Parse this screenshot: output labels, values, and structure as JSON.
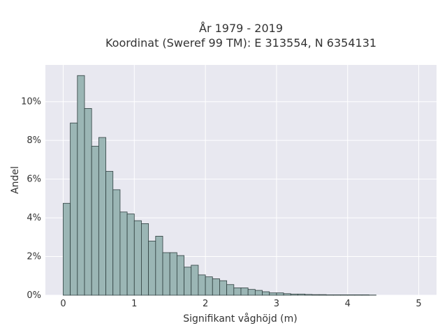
{
  "chart_data": {
    "type": "bar",
    "title_line1": "År 1979 - 2019",
    "title_line2": "Koordinat (Sweref 99 TM): E 313554, N 6354131",
    "xlabel": "Signifikant våghöjd (m)",
    "ylabel": "Andel",
    "xlim": [
      -0.25,
      5.25
    ],
    "ylim": [
      0,
      11.9
    ],
    "x_ticks": [
      0,
      1,
      2,
      3,
      4,
      5
    ],
    "x_tick_labels": [
      "0",
      "1",
      "2",
      "3",
      "4",
      "5"
    ],
    "y_ticks": [
      0,
      2,
      4,
      6,
      8,
      10
    ],
    "y_tick_labels": [
      "0%",
      "2%",
      "4%",
      "6%",
      "8%",
      "10%"
    ],
    "bin_width": 0.1,
    "bin_start": 0.0,
    "values": [
      4.75,
      8.9,
      11.35,
      9.65,
      7.7,
      8.15,
      6.4,
      5.45,
      4.3,
      4.2,
      3.85,
      3.7,
      2.8,
      3.05,
      2.2,
      2.2,
      2.05,
      1.45,
      1.55,
      1.05,
      0.95,
      0.85,
      0.75,
      0.55,
      0.38,
      0.38,
      0.3,
      0.25,
      0.18,
      0.12,
      0.12,
      0.08,
      0.06,
      0.06,
      0.04,
      0.03,
      0.03,
      0.02,
      0.02,
      0.02,
      0.02,
      0.02,
      0.02,
      0.01
    ],
    "bar_color": "#9bb6b5",
    "bar_edge_color": "#2f3f3f",
    "background_color": "#e8e8f0",
    "grid": true,
    "grid_color": "#ffffff"
  }
}
